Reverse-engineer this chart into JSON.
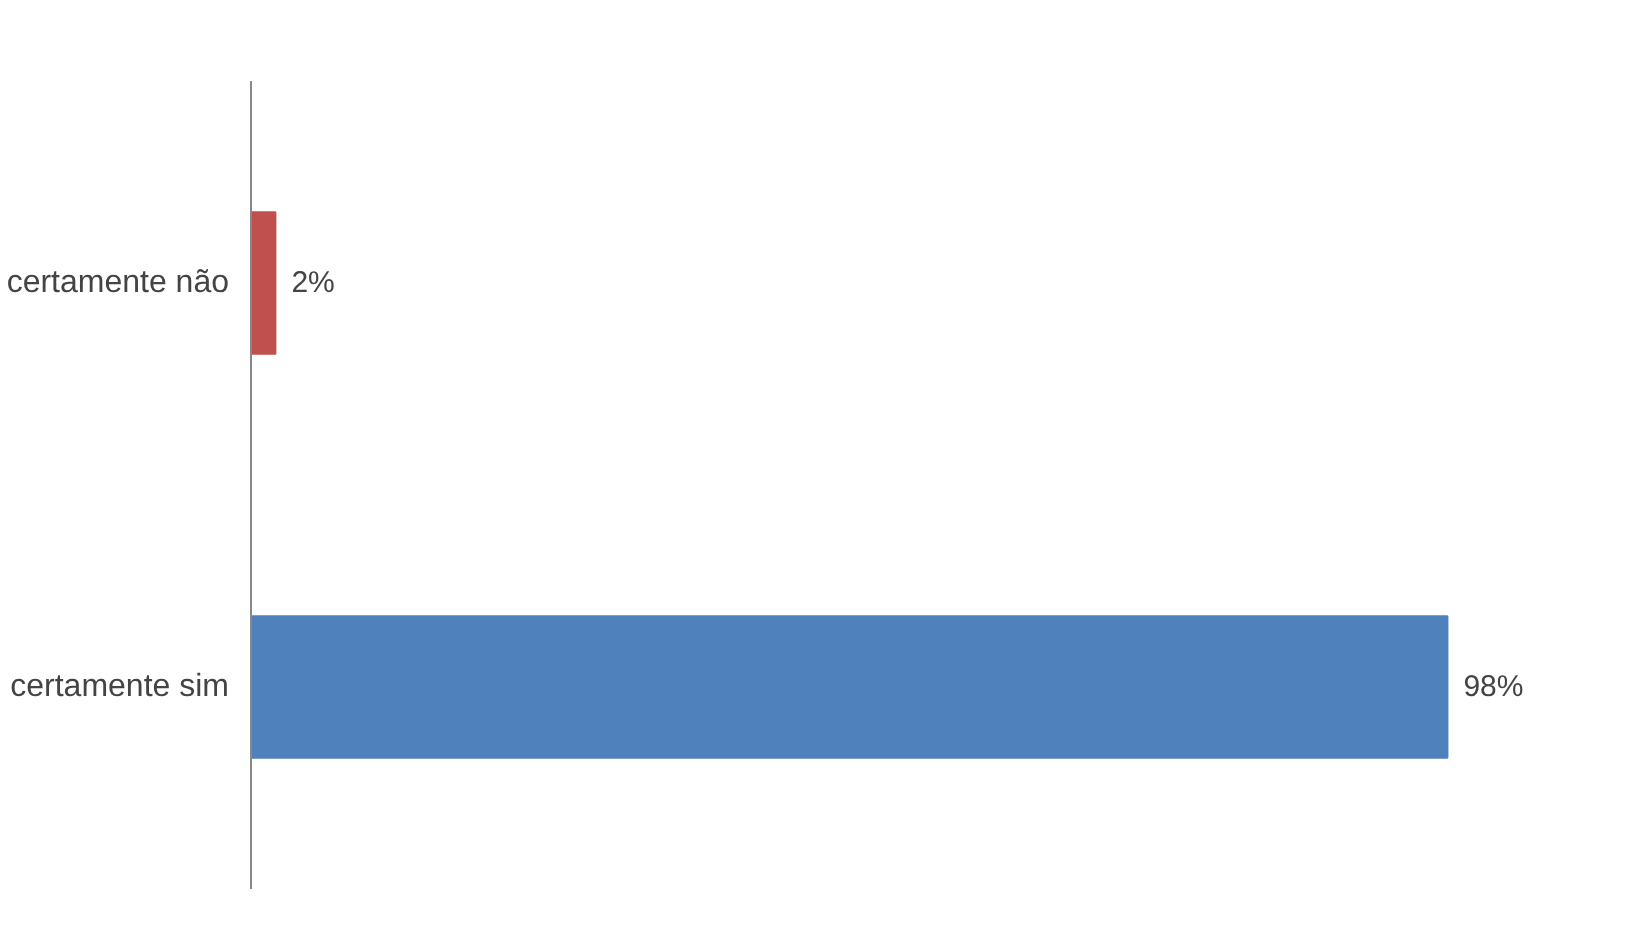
{
  "chart_data": {
    "type": "bar",
    "orientation": "horizontal",
    "categories": [
      "certamente não",
      "certamente sim"
    ],
    "values": [
      2,
      98
    ],
    "colors": [
      "#c0504d",
      "#4f81bd"
    ],
    "value_labels": [
      "2%",
      "98%"
    ],
    "grid": false
  }
}
